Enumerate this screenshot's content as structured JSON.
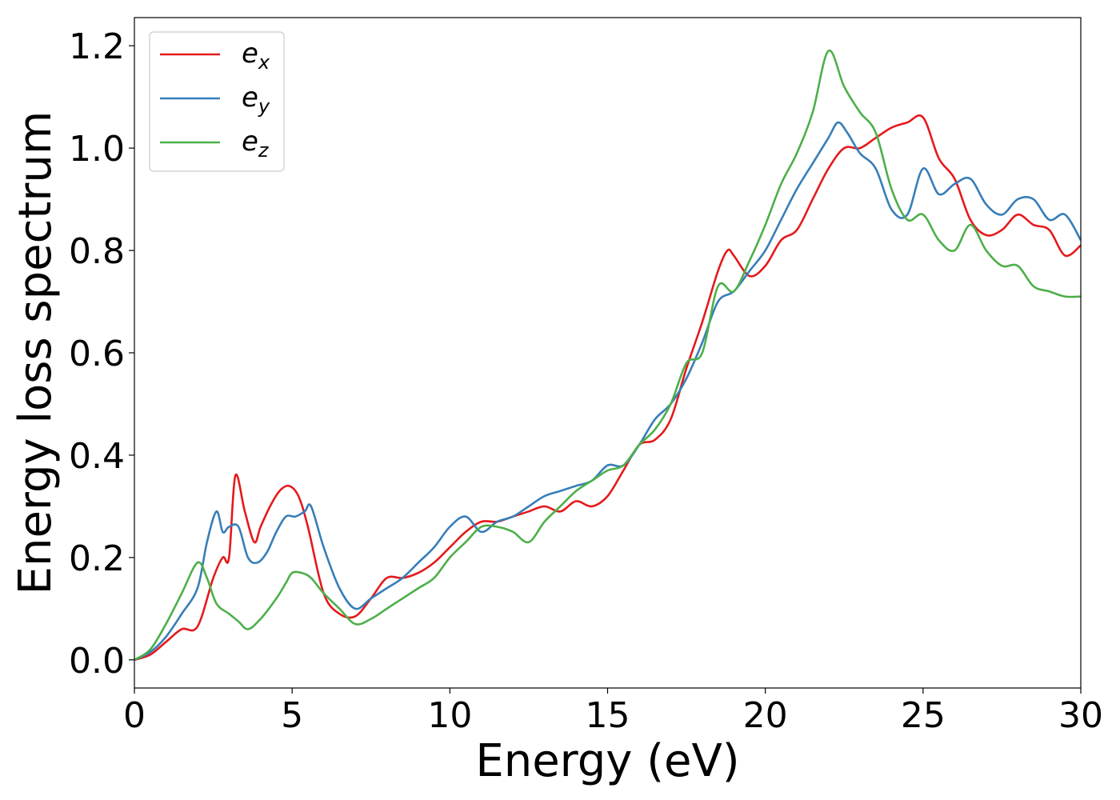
{
  "chart_data": {
    "type": "line",
    "xlabel": "Energy (eV)",
    "ylabel": "Energy loss spectrum",
    "xlim": [
      0,
      30
    ],
    "ylim": [
      -0.055,
      1.255
    ],
    "xticks": [
      0,
      5,
      10,
      15,
      20,
      25,
      30
    ],
    "xtick_labels": [
      "0",
      "5",
      "10",
      "15",
      "20",
      "25",
      "30"
    ],
    "yticks": [
      0.0,
      0.2,
      0.4,
      0.6,
      0.8,
      1.0,
      1.2
    ],
    "ytick_labels": [
      "0.0",
      "0.2",
      "0.4",
      "0.6",
      "0.8",
      "1.0",
      "1.2"
    ],
    "grid": false,
    "legend_position": "top-left",
    "series": [
      {
        "name": "e_x",
        "label_base": "e",
        "label_sub": "x",
        "color": "#e41a1c",
        "x": [
          0,
          0.5,
          1.0,
          1.5,
          2.0,
          2.5,
          2.8,
          3.0,
          3.2,
          3.5,
          3.8,
          4.0,
          4.3,
          4.6,
          4.9,
          5.2,
          5.5,
          6.0,
          6.5,
          7.0,
          7.5,
          8.0,
          8.5,
          9.0,
          9.5,
          10.0,
          10.5,
          11.0,
          11.5,
          12.0,
          12.5,
          13.0,
          13.5,
          14.0,
          14.5,
          15.0,
          15.5,
          16.0,
          16.5,
          17.0,
          17.5,
          18.0,
          18.5,
          18.8,
          19.0,
          19.5,
          20.0,
          20.5,
          21.0,
          21.5,
          22.0,
          22.5,
          23.0,
          23.5,
          24.0,
          24.5,
          25.0,
          25.5,
          26.0,
          26.5,
          27.0,
          27.5,
          28.0,
          28.5,
          29.0,
          29.5,
          30.0
        ],
        "y": [
          0.0,
          0.01,
          0.035,
          0.06,
          0.065,
          0.16,
          0.2,
          0.2,
          0.36,
          0.29,
          0.23,
          0.26,
          0.3,
          0.33,
          0.34,
          0.32,
          0.26,
          0.13,
          0.09,
          0.085,
          0.12,
          0.16,
          0.16,
          0.17,
          0.19,
          0.22,
          0.25,
          0.27,
          0.27,
          0.28,
          0.29,
          0.3,
          0.29,
          0.31,
          0.3,
          0.32,
          0.37,
          0.42,
          0.43,
          0.47,
          0.57,
          0.66,
          0.76,
          0.8,
          0.79,
          0.75,
          0.77,
          0.82,
          0.84,
          0.9,
          0.96,
          1.0,
          1.0,
          1.02,
          1.04,
          1.05,
          1.06,
          0.98,
          0.94,
          0.86,
          0.83,
          0.84,
          0.87,
          0.85,
          0.84,
          0.79,
          0.81
        ]
      },
      {
        "name": "e_y",
        "label_base": "e",
        "label_sub": "y",
        "color": "#377eb8",
        "x": [
          0,
          0.5,
          1.0,
          1.5,
          2.0,
          2.3,
          2.6,
          2.8,
          3.0,
          3.3,
          3.6,
          3.9,
          4.2,
          4.5,
          4.8,
          5.1,
          5.4,
          5.6,
          6.0,
          6.5,
          7.0,
          7.5,
          8.0,
          8.5,
          9.0,
          9.5,
          10.0,
          10.5,
          11.0,
          11.5,
          12.0,
          12.5,
          13.0,
          13.5,
          14.0,
          14.5,
          15.0,
          15.5,
          16.0,
          16.5,
          17.0,
          17.5,
          18.0,
          18.5,
          19.0,
          19.5,
          20.0,
          20.5,
          21.0,
          21.5,
          22.0,
          22.3,
          22.6,
          23.0,
          23.5,
          24.0,
          24.5,
          25.0,
          25.5,
          26.0,
          26.5,
          27.0,
          27.5,
          28.0,
          28.5,
          29.0,
          29.5,
          30.0
        ],
        "y": [
          0.0,
          0.015,
          0.045,
          0.09,
          0.14,
          0.23,
          0.29,
          0.25,
          0.26,
          0.26,
          0.2,
          0.19,
          0.21,
          0.25,
          0.28,
          0.28,
          0.29,
          0.3,
          0.22,
          0.14,
          0.1,
          0.12,
          0.14,
          0.16,
          0.19,
          0.22,
          0.26,
          0.28,
          0.25,
          0.27,
          0.28,
          0.3,
          0.32,
          0.33,
          0.34,
          0.35,
          0.38,
          0.38,
          0.42,
          0.47,
          0.5,
          0.55,
          0.62,
          0.7,
          0.72,
          0.76,
          0.8,
          0.86,
          0.92,
          0.97,
          1.02,
          1.05,
          1.03,
          0.99,
          0.96,
          0.88,
          0.87,
          0.96,
          0.91,
          0.93,
          0.94,
          0.89,
          0.87,
          0.9,
          0.9,
          0.86,
          0.87,
          0.82
        ]
      },
      {
        "name": "e_z",
        "label_base": "e",
        "label_sub": "z",
        "color": "#4daf4a",
        "x": [
          0,
          0.5,
          1.0,
          1.5,
          2.0,
          2.3,
          2.6,
          3.0,
          3.3,
          3.6,
          4.0,
          4.5,
          4.8,
          5.0,
          5.3,
          5.6,
          6.0,
          6.5,
          7.0,
          7.5,
          8.0,
          8.5,
          9.0,
          9.5,
          10.0,
          10.5,
          11.0,
          11.5,
          12.0,
          12.5,
          13.0,
          13.5,
          14.0,
          14.5,
          15.0,
          15.5,
          16.0,
          16.5,
          17.0,
          17.5,
          18.0,
          18.5,
          19.0,
          19.5,
          20.0,
          20.5,
          21.0,
          21.5,
          22.0,
          22.5,
          23.0,
          23.5,
          24.0,
          24.5,
          25.0,
          25.5,
          26.0,
          26.5,
          27.0,
          27.5,
          28.0,
          28.5,
          29.0,
          29.5,
          30.0
        ],
        "y": [
          0.0,
          0.02,
          0.07,
          0.13,
          0.19,
          0.16,
          0.11,
          0.09,
          0.075,
          0.06,
          0.08,
          0.12,
          0.15,
          0.17,
          0.17,
          0.16,
          0.13,
          0.1,
          0.07,
          0.08,
          0.1,
          0.12,
          0.14,
          0.16,
          0.2,
          0.23,
          0.26,
          0.26,
          0.25,
          0.23,
          0.27,
          0.3,
          0.33,
          0.35,
          0.37,
          0.38,
          0.42,
          0.45,
          0.5,
          0.58,
          0.6,
          0.73,
          0.72,
          0.78,
          0.85,
          0.93,
          0.99,
          1.07,
          1.19,
          1.12,
          1.07,
          1.03,
          0.92,
          0.86,
          0.87,
          0.82,
          0.8,
          0.85,
          0.8,
          0.77,
          0.77,
          0.73,
          0.72,
          0.71,
          0.71
        ]
      }
    ]
  }
}
